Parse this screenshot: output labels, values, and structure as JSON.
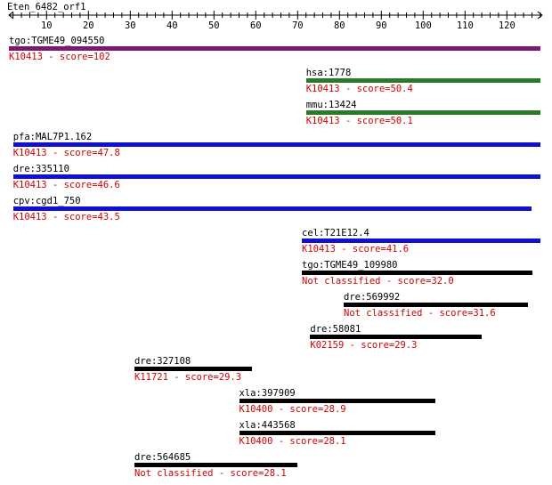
{
  "ruler": {
    "title": "Eten_6482_orf1",
    "ticks": [
      10,
      20,
      30,
      40,
      50,
      60,
      70,
      80,
      90,
      100,
      110,
      120
    ],
    "length": 128
  },
  "colors": {
    "purple": "#7a1a6e",
    "green": "#2a7a2a",
    "blue": "#1010d0",
    "black": "#000000",
    "text": "#000000",
    "score": "#d40000"
  },
  "hits": [
    {
      "name": "tgo:TGME49_094550",
      "score_text": "K10413 - score=102",
      "start": 1,
      "end": 128,
      "color": "purple"
    },
    {
      "name": "hsa:1778",
      "score_text": "K10413 - score=50.4",
      "start": 72,
      "end": 128,
      "color": "green"
    },
    {
      "name": "mmu:13424",
      "score_text": "K10413 - score=50.1",
      "start": 72,
      "end": 128,
      "color": "green"
    },
    {
      "name": "pfa:MAL7P1.162",
      "score_text": "K10413 - score=47.8",
      "start": 2,
      "end": 128,
      "color": "blue"
    },
    {
      "name": "dre:335110",
      "score_text": "K10413 - score=46.6",
      "start": 2,
      "end": 128,
      "color": "blue"
    },
    {
      "name": "cpv:cgd1_750",
      "score_text": "K10413 - score=43.5",
      "start": 2,
      "end": 126,
      "color": "blue"
    },
    {
      "name": "cel:T21E12.4",
      "score_text": "K10413 - score=41.6",
      "start": 71,
      "end": 128,
      "color": "blue"
    },
    {
      "name": "tgo:TGME49_109980",
      "score_text": "Not classified - score=32.0",
      "start": 71,
      "end": 126,
      "color": "black"
    },
    {
      "name": "dre:569992",
      "score_text": "Not classified - score=31.6",
      "start": 81,
      "end": 125,
      "color": "black"
    },
    {
      "name": "dre:58081",
      "score_text": "K02159 - score=29.3",
      "start": 73,
      "end": 114,
      "color": "black"
    },
    {
      "name": "dre:327108",
      "score_text": "K11721 - score=29.3",
      "start": 31,
      "end": 59,
      "color": "black"
    },
    {
      "name": "xla:397909",
      "score_text": "K10400 - score=28.9",
      "start": 56,
      "end": 103,
      "color": "black"
    },
    {
      "name": "xla:443568",
      "score_text": "K10400 - score=28.1",
      "start": 56,
      "end": 103,
      "color": "black"
    },
    {
      "name": "dre:564685",
      "score_text": "Not classified - score=28.1",
      "start": 31,
      "end": 70,
      "color": "black"
    }
  ]
}
